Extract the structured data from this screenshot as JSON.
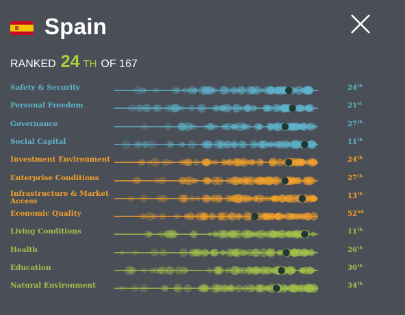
{
  "country": "Spain",
  "flag_icon": "spain-flag-icon",
  "close_icon": "close-icon",
  "overall": {
    "prefix": "RANKED",
    "rank": "24",
    "suffix": "TH",
    "of_text": "OF 167"
  },
  "colors": {
    "background": "#4a4e57",
    "blue": "#5eb4cc",
    "orange": "#f3a12b",
    "green": "#a3c24a",
    "marker": "#1f3a35",
    "accent": "#a8d03a"
  },
  "pillars": [
    {
      "label": "Safety & Security",
      "rank": "24",
      "suffix": "th",
      "group": "blue",
      "position": 0.856
    },
    {
      "label": "Personal Freedom",
      "rank": "21",
      "suffix": "st",
      "group": "blue",
      "position": 0.874
    },
    {
      "label": "Governance",
      "rank": "27",
      "suffix": "th",
      "group": "blue",
      "position": 0.838
    },
    {
      "label": "Social Capital",
      "rank": "11",
      "suffix": "th",
      "group": "blue",
      "position": 0.934
    },
    {
      "label": "Investment Environment",
      "rank": "24",
      "suffix": "th",
      "group": "orange",
      "position": 0.856
    },
    {
      "label": "Enterprise Conditions",
      "rank": "27",
      "suffix": "th",
      "group": "orange",
      "position": 0.838
    },
    {
      "label": "Infrastructure & Market Access",
      "rank": "13",
      "suffix": "th",
      "group": "orange",
      "position": 0.922
    },
    {
      "label": "Economic Quality",
      "rank": "52",
      "suffix": "nd",
      "group": "orange",
      "position": 0.689
    },
    {
      "label": "Living Conditions",
      "rank": "11",
      "suffix": "th",
      "group": "green",
      "position": 0.934
    },
    {
      "label": "Health",
      "rank": "26",
      "suffix": "th",
      "group": "green",
      "position": 0.844
    },
    {
      "label": "Education",
      "rank": "30",
      "suffix": "th",
      "group": "green",
      "position": 0.82
    },
    {
      "label": "Natural Environment",
      "rank": "34",
      "suffix": "th",
      "group": "green",
      "position": 0.796
    }
  ]
}
